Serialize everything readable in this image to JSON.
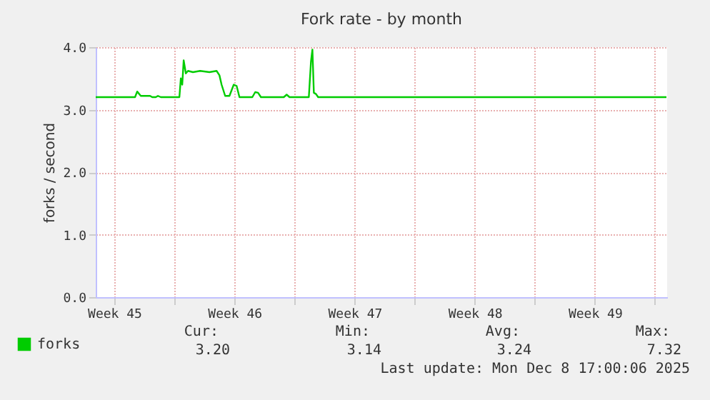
{
  "chart_data": {
    "type": "line",
    "title": "Fork rate - by month",
    "ylabel": "forks / second",
    "x": [
      "2025-11-05T10:00",
      "2025-11-07T17:00",
      "2025-11-07T20:00",
      "2025-11-08T01:00",
      "2025-11-08T14:00",
      "2025-11-08T17:00",
      "2025-11-08T22:00",
      "2025-11-09T01:00",
      "2025-11-09T05:00",
      "2025-11-10T07:00",
      "2025-11-10T09:00",
      "2025-11-10T11:00",
      "2025-11-10T13:00",
      "2025-11-10T16:00",
      "2025-11-10T19:00",
      "2025-11-11T02:00",
      "2025-11-11T12:00",
      "2025-11-12T01:00",
      "2025-11-12T11:00",
      "2025-11-12T15:00",
      "2025-11-12T18:00",
      "2025-11-12T23:00",
      "2025-11-13T05:00",
      "2025-11-13T11:00",
      "2025-11-13T15:00",
      "2025-11-13T19:00",
      "2025-11-14T13:00",
      "2025-11-14T17:00",
      "2025-11-14T21:00",
      "2025-11-15T01:00",
      "2025-11-16T09:00",
      "2025-11-16T13:00",
      "2025-11-16T17:00",
      "2025-11-17T20:00",
      "2025-11-17T23:00",
      "2025-11-18T01:00",
      "2025-11-18T03:00",
      "2025-11-18T06:00",
      "2025-11-18T09:00",
      "2025-12-08T16:00"
    ],
    "series": [
      {
        "name": "forks",
        "color": "#00cc00",
        "values": [
          3.2,
          3.2,
          3.29,
          3.22,
          3.22,
          3.2,
          3.2,
          3.22,
          3.2,
          3.2,
          3.5,
          3.4,
          3.79,
          3.58,
          3.62,
          3.6,
          3.62,
          3.6,
          3.62,
          3.55,
          3.4,
          3.22,
          3.22,
          3.4,
          3.38,
          3.2,
          3.2,
          3.28,
          3.27,
          3.2,
          3.2,
          3.24,
          3.2,
          3.2,
          3.77,
          3.96,
          3.27,
          3.25,
          3.2,
          3.2
        ]
      }
    ],
    "xlim": [
      "2025-11-05T10:00",
      "2025-12-08T17:00"
    ],
    "xticks": [
      {
        "value": "2025-11-06T12:00",
        "label": "Week 45"
      },
      {
        "value": "2025-11-10",
        "label": null
      },
      {
        "value": "2025-11-13T12:00",
        "label": "Week 46"
      },
      {
        "value": "2025-11-17",
        "label": null
      },
      {
        "value": "2025-11-20T12:00",
        "label": "Week 47"
      },
      {
        "value": "2025-11-24",
        "label": null
      },
      {
        "value": "2025-11-27T12:00",
        "label": "Week 48"
      },
      {
        "value": "2025-12-01",
        "label": null
      },
      {
        "value": "2025-12-04T12:00",
        "label": "Week 49"
      },
      {
        "value": "2025-12-08",
        "label": null
      }
    ],
    "ylim": [
      0,
      4.0
    ],
    "yticks": [
      {
        "value": 0,
        "label": "0.0"
      },
      {
        "value": 1,
        "label": "1.0"
      },
      {
        "value": 2,
        "label": "2.0"
      },
      {
        "value": 3,
        "label": "3.0"
      },
      {
        "value": 4,
        "label": "4.0"
      }
    ],
    "grid": true,
    "legend": "bottom left",
    "annotations": [
      "Cur:",
      "Min:",
      "Avg:",
      "Max:",
      "3.20",
      "3.14",
      "3.24",
      "7.32",
      "Last update:  Mon Dec  8 17:00:06 2025"
    ]
  }
}
